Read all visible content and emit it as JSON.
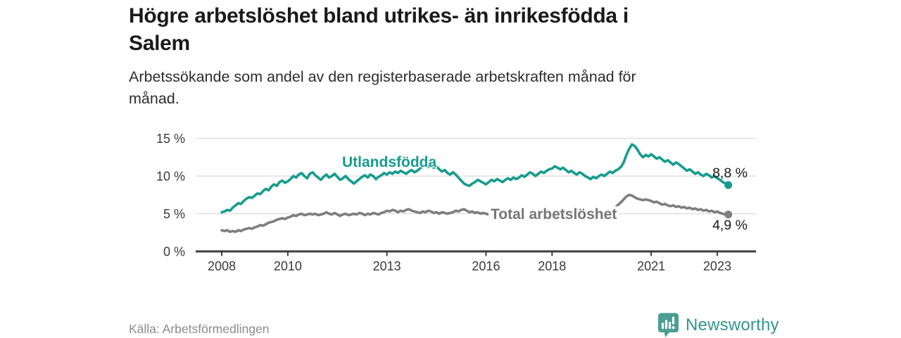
{
  "header": {
    "title_lines": [
      "Högre arbetslöshet bland utrikes- än inrikesfödda i",
      "Salem"
    ],
    "subtitle_lines": [
      "Arbetssökande som andel av den registerbaserade arbetskraften månad för",
      "månad."
    ]
  },
  "footer": {
    "source": "Källa: Arbetsförmedlingen",
    "brand": "Newsworthy"
  },
  "colors": {
    "teal": "#169c8d",
    "gray": "#7e7e7e",
    "gray_label": "#757575",
    "axis": "#3e3e3e",
    "grid": "#dbdbdb",
    "logo_icon": "#4c9d92",
    "logo_text": "#2f968c"
  },
  "chart_data": {
    "type": "line",
    "title": "Högre arbetslöshet bland utrikes- än inrikesfödda i Salem",
    "subtitle": "Arbetssökande som andel av den registerbaserade arbetskraften månad för månad.",
    "xlabel": "",
    "ylabel": "",
    "y_unit": "%",
    "x_unit": "year (monthly data)",
    "x_start_year": 2008,
    "x_step_months": 1,
    "ylim": [
      0,
      15.5
    ],
    "yticks": [
      0,
      5,
      10,
      15
    ],
    "ytick_labels": [
      "0 %",
      "5 %",
      "10 %",
      "15 %"
    ],
    "xticks": [
      2008,
      2010,
      2013,
      2016,
      2018,
      2021,
      2023
    ],
    "xtick_labels": [
      "2008",
      "2010",
      "2013",
      "2016",
      "2018",
      "2021",
      "2023"
    ],
    "grid": "horizontal",
    "legend_position": "inline-labels",
    "series": [
      {
        "key": "utlandsfodda",
        "name": "Utlandsfödda",
        "color": "#169c8d",
        "end_value": 8.8,
        "end_label": "8,8 %",
        "values": [
          5.2,
          5.3,
          5.5,
          5.4,
          5.8,
          6.1,
          6.4,
          6.3,
          6.7,
          7.0,
          7.2,
          7.1,
          7.4,
          7.7,
          7.6,
          8.0,
          8.3,
          8.1,
          8.6,
          8.9,
          8.7,
          9.2,
          9.4,
          9.1,
          9.3,
          9.6,
          10.0,
          9.8,
          10.2,
          10.4,
          10.0,
          9.7,
          10.3,
          10.5,
          10.1,
          9.8,
          9.5,
          9.9,
          10.2,
          9.8,
          10.0,
          10.3,
          9.9,
          9.5,
          9.7,
          10.0,
          9.6,
          9.3,
          9.0,
          9.3,
          9.6,
          9.9,
          10.1,
          9.8,
          10.2,
          10.0,
          9.6,
          9.9,
          10.1,
          10.4,
          10.2,
          10.5,
          10.3,
          10.6,
          10.4,
          10.7,
          10.5,
          10.3,
          10.6,
          10.8,
          10.5,
          10.7,
          11.0,
          11.3,
          11.5,
          11.2,
          11.4,
          11.1,
          11.3,
          10.9,
          10.6,
          10.8,
          10.4,
          10.2,
          10.5,
          10.2,
          9.8,
          9.4,
          9.0,
          8.8,
          8.7,
          9.0,
          9.2,
          9.5,
          9.3,
          9.1,
          8.9,
          9.2,
          9.5,
          9.3,
          9.6,
          9.4,
          9.2,
          9.5,
          9.7,
          9.5,
          9.8,
          9.6,
          9.8,
          10.1,
          9.9,
          10.2,
          10.5,
          10.3,
          10.0,
          10.3,
          10.6,
          10.4,
          10.7,
          10.9,
          11.0,
          11.3,
          11.1,
          10.9,
          11.1,
          10.8,
          10.5,
          10.7,
          10.4,
          10.2,
          10.5,
          10.3,
          10.0,
          9.8,
          9.6,
          9.9,
          9.7,
          10.0,
          10.2,
          10.0,
          10.3,
          10.6,
          10.4,
          10.7,
          10.9,
          11.2,
          11.8,
          12.8,
          13.6,
          14.2,
          14.0,
          13.5,
          12.9,
          12.5,
          12.8,
          12.6,
          12.9,
          12.6,
          12.3,
          12.5,
          12.2,
          11.9,
          12.1,
          11.8,
          11.5,
          11.8,
          11.6,
          11.3,
          11.0,
          10.7,
          10.9,
          10.6,
          10.3,
          10.5,
          10.2,
          10.0,
          10.3,
          10.1,
          9.8,
          10.0,
          9.7,
          9.5,
          9.2,
          9.0,
          8.8
        ]
      },
      {
        "key": "total",
        "name": "Total arbetslöshet",
        "color": "#7e7e7e",
        "end_value": 4.9,
        "end_label": "4,9 %",
        "values": [
          2.8,
          2.7,
          2.8,
          2.6,
          2.7,
          2.6,
          2.8,
          2.7,
          2.9,
          3.0,
          3.1,
          3.0,
          3.2,
          3.3,
          3.5,
          3.4,
          3.6,
          3.8,
          3.9,
          4.0,
          4.2,
          4.3,
          4.4,
          4.3,
          4.5,
          4.6,
          4.8,
          4.7,
          4.9,
          5.0,
          4.8,
          4.9,
          5.0,
          4.9,
          5.0,
          4.8,
          4.9,
          5.0,
          5.2,
          5.0,
          4.9,
          5.1,
          4.9,
          4.7,
          4.9,
          5.0,
          4.8,
          4.9,
          5.0,
          4.9,
          5.1,
          5.0,
          4.8,
          5.0,
          4.9,
          5.1,
          5.0,
          4.9,
          5.1,
          5.2,
          5.4,
          5.3,
          5.5,
          5.4,
          5.2,
          5.4,
          5.3,
          5.5,
          5.6,
          5.4,
          5.3,
          5.2,
          5.1,
          5.3,
          5.2,
          5.4,
          5.3,
          5.1,
          5.2,
          5.0,
          5.2,
          5.1,
          5.0,
          5.1,
          5.2,
          5.4,
          5.3,
          5.5,
          5.6,
          5.4,
          5.2,
          5.3,
          5.1,
          5.2,
          5.0,
          5.1,
          5.0,
          4.9,
          4.7,
          4.8,
          4.6,
          4.5,
          4.4,
          4.3,
          4.4,
          4.3,
          4.2,
          4.3,
          4.4,
          4.3,
          4.5,
          4.4,
          4.2,
          4.3,
          4.2,
          4.4,
          4.3,
          4.4,
          4.5,
          4.4,
          4.5,
          4.4,
          4.6,
          4.5,
          4.3,
          4.4,
          4.3,
          4.5,
          4.4,
          4.6,
          4.5,
          4.7,
          4.8,
          4.7,
          4.9,
          4.8,
          5.0,
          4.9,
          5.1,
          5.0,
          5.2,
          5.3,
          5.5,
          5.8,
          6.2,
          6.5,
          6.9,
          7.3,
          7.5,
          7.4,
          7.2,
          7.0,
          6.9,
          6.8,
          6.9,
          6.8,
          6.7,
          6.5,
          6.6,
          6.4,
          6.2,
          6.3,
          6.1,
          6.0,
          6.1,
          5.9,
          6.0,
          5.8,
          5.9,
          5.7,
          5.8,
          5.6,
          5.7,
          5.5,
          5.6,
          5.4,
          5.5,
          5.3,
          5.4,
          5.2,
          5.3,
          5.1,
          5.0,
          4.9,
          4.9
        ]
      }
    ]
  }
}
